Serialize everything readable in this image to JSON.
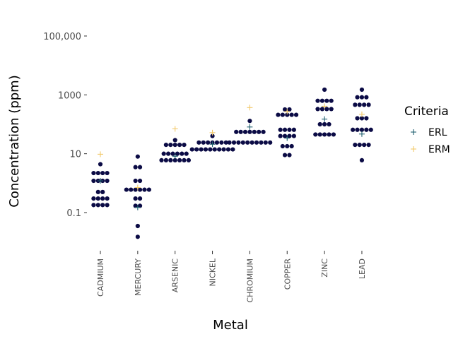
{
  "chart_data": {
    "type": "scatter",
    "xlabel": "Metal",
    "ylabel": "Concentration (ppm)",
    "y_scale": "log10",
    "ylim": [
      0.008,
      600000
    ],
    "y_ticks": [
      {
        "value": 0.1,
        "label": "0.1"
      },
      {
        "value": 10,
        "label": "10"
      },
      {
        "value": 1000,
        "label": "1000"
      },
      {
        "value": 100000,
        "label": "100,000"
      }
    ],
    "categories": [
      "CADMIUM",
      "MERCURY",
      "ARSENIC",
      "NICKEL",
      "CHROMIUM",
      "COPPER",
      "ZINC",
      "LEAD"
    ],
    "grid": false,
    "legend": {
      "title": "Criteria",
      "placement": "right",
      "entries": [
        {
          "name": "ERL",
          "color": "#1f5f6e"
        },
        {
          "name": "ERM",
          "color": "#f2c96b"
        }
      ]
    },
    "dot_color": "#0b0b45",
    "dot_rows": {
      "CADMIUM": [
        [
          0.18,
          4
        ],
        [
          0.3,
          4
        ],
        [
          0.5,
          2
        ],
        [
          1.2,
          4
        ],
        [
          2.2,
          4
        ],
        [
          4.4,
          1
        ]
      ],
      "MERCURY": [
        [
          0.015,
          1
        ],
        [
          0.035,
          1
        ],
        [
          0.17,
          2
        ],
        [
          0.3,
          2
        ],
        [
          0.6,
          6
        ],
        [
          1.2,
          2
        ],
        [
          3.5,
          2
        ],
        [
          8,
          1
        ]
      ],
      "ARSENIC": [
        [
          6,
          7
        ],
        [
          10,
          6
        ],
        [
          20,
          5
        ],
        [
          29,
          1
        ]
      ],
      "NICKEL": [
        [
          14,
          10
        ],
        [
          24,
          7
        ],
        [
          40,
          1
        ]
      ],
      "CHROMIUM": [
        [
          24,
          10
        ],
        [
          55,
          7
        ],
        [
          130,
          1
        ]
      ],
      "COPPER": [
        [
          9,
          2
        ],
        [
          18,
          3
        ],
        [
          40,
          4
        ],
        [
          65,
          4
        ],
        [
          210,
          5
        ],
        [
          320,
          2
        ]
      ],
      "ZINC": [
        [
          45,
          5
        ],
        [
          100,
          3
        ],
        [
          330,
          4
        ],
        [
          630,
          4
        ],
        [
          1500,
          1
        ]
      ],
      "LEAD": [
        [
          6,
          1
        ],
        [
          20,
          4
        ],
        [
          65,
          5
        ],
        [
          160,
          3
        ],
        [
          460,
          4
        ],
        [
          830,
          3
        ],
        [
          1500,
          1
        ]
      ]
    },
    "series": [
      {
        "name": "ERL",
        "values": [
          1.2,
          0.15,
          8.2,
          21,
          81,
          34,
          150,
          46.7
        ]
      },
      {
        "name": "ERM",
        "values": [
          9.6,
          0.71,
          70,
          52,
          370,
          270,
          410,
          218
        ]
      }
    ]
  }
}
